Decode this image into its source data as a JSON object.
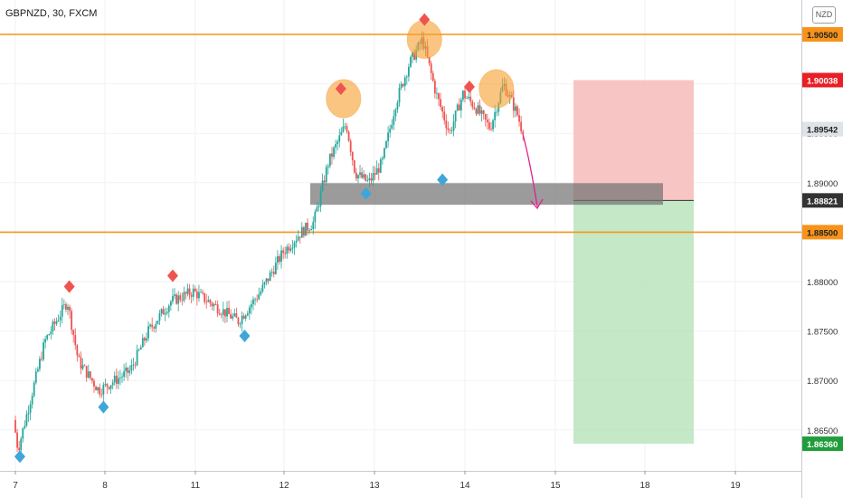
{
  "header": {
    "symbol_title": "GBPNZD, 30, FXCM",
    "currency_button": "NZD"
  },
  "colors": {
    "up": "#26a69a",
    "down": "#ef5350",
    "resistance": "#f7931a",
    "zone": "#707070",
    "stop_zone": "#f6b7b7",
    "target_zone": "#b6e2b8",
    "arrow": "#e0208a",
    "top_marker": "#ef5350",
    "bottom_marker": "#3fa6d9",
    "circle": "#f7a02f"
  },
  "chart_data": {
    "type": "candlestick",
    "title": "GBPNZD, 30, FXCM",
    "ylim": [
      1.858,
      1.912
    ],
    "x_tick_labels": [
      "7",
      "8",
      "11",
      "12",
      "13",
      "14",
      "15",
      "18",
      "19"
    ],
    "y_tick_labels": [
      "1.86500",
      "1.87000",
      "1.87500",
      "1.88000",
      "1.88500",
      "1.89000",
      "1.89500",
      "1.90000",
      "1.90500"
    ],
    "price_path": [
      [
        0,
        1.866
      ],
      [
        0.05,
        1.863
      ],
      [
        0.35,
        1.874
      ],
      [
        0.6,
        1.878
      ],
      [
        0.72,
        1.872
      ],
      [
        0.95,
        1.869
      ],
      [
        1.3,
        1.871
      ],
      [
        1.5,
        1.875
      ],
      [
        1.75,
        1.878
      ],
      [
        2.0,
        1.879
      ],
      [
        2.5,
        1.876
      ],
      [
        2.75,
        1.879
      ],
      [
        3.0,
        1.883
      ],
      [
        3.2,
        1.885
      ],
      [
        3.34,
        1.886
      ],
      [
        3.5,
        1.892
      ],
      [
        3.6,
        1.894
      ],
      [
        3.7,
        1.896
      ],
      [
        3.8,
        1.891
      ],
      [
        3.95,
        1.89
      ],
      [
        4.1,
        1.892
      ],
      [
        4.25,
        1.898
      ],
      [
        4.4,
        1.902
      ],
      [
        4.55,
        1.9045
      ],
      [
        4.7,
        1.899
      ],
      [
        4.85,
        1.895
      ],
      [
        5.0,
        1.899
      ],
      [
        5.15,
        1.8975
      ],
      [
        5.3,
        1.8955
      ],
      [
        5.45,
        1.9
      ],
      [
        5.6,
        1.897
      ],
      [
        5.65,
        1.8955
      ]
    ],
    "resistance_levels": [
      1.905,
      1.885
    ],
    "support_zone": [
      1.888,
      1.89
    ],
    "trade": {
      "stop_loss": 1.90038,
      "entry": 1.88821,
      "take_profit": 1.8636
    },
    "price_labels": [
      {
        "text": "1.90500",
        "role": "resistance"
      },
      {
        "text": "1.90038",
        "role": "stop"
      },
      {
        "text": "1.89542",
        "role": "current"
      },
      {
        "text": "1.88821",
        "role": "entry"
      },
      {
        "text": "1.88500",
        "role": "resistance"
      },
      {
        "text": "1.86360",
        "role": "target"
      }
    ],
    "markers": {
      "tops": [
        [
          0.6,
          1.8795
        ],
        [
          1.75,
          1.8806
        ],
        [
          3.62,
          1.8995
        ],
        [
          4.55,
          1.9065
        ],
        [
          5.05,
          1.8997
        ]
      ],
      "bottoms": [
        [
          0.05,
          1.8623
        ],
        [
          0.98,
          1.8673
        ],
        [
          2.55,
          1.8745
        ],
        [
          3.9,
          1.8889
        ],
        [
          4.75,
          1.8903
        ]
      ],
      "pattern_circles": [
        [
          3.65,
          1.8985
        ],
        [
          4.55,
          1.9045
        ],
        [
          5.35,
          1.8995
        ]
      ]
    }
  }
}
